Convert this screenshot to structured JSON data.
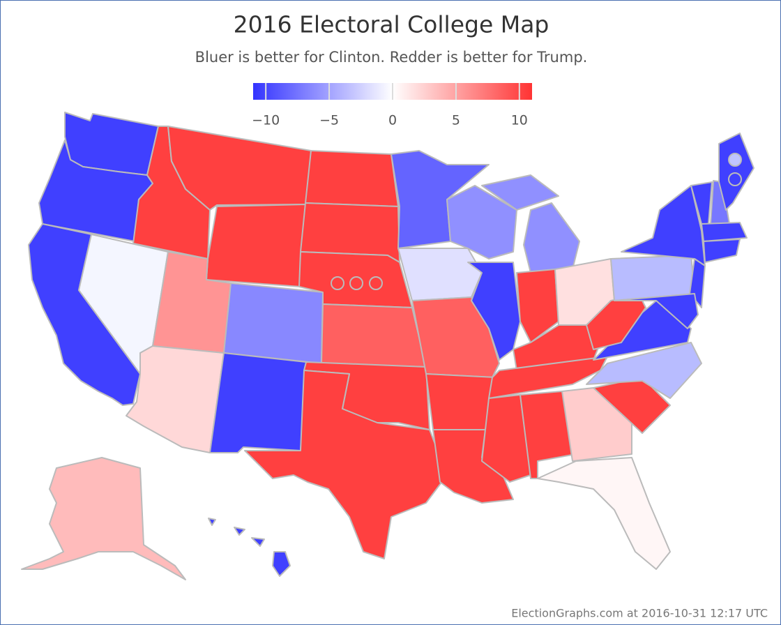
{
  "title": "2016 Electoral College Map",
  "subtitle": "Bluer is better for Clinton. Redder is better for Trump.",
  "legend": {
    "lim": [
      -11,
      11
    ],
    "ticks": [
      {
        "value": -10,
        "label": "−10"
      },
      {
        "value": -5,
        "label": "−5"
      },
      0,
      5,
      10
    ]
  },
  "footer": "ElectionGraphs.com at 2016-10-31 12:17 UTC"
}
